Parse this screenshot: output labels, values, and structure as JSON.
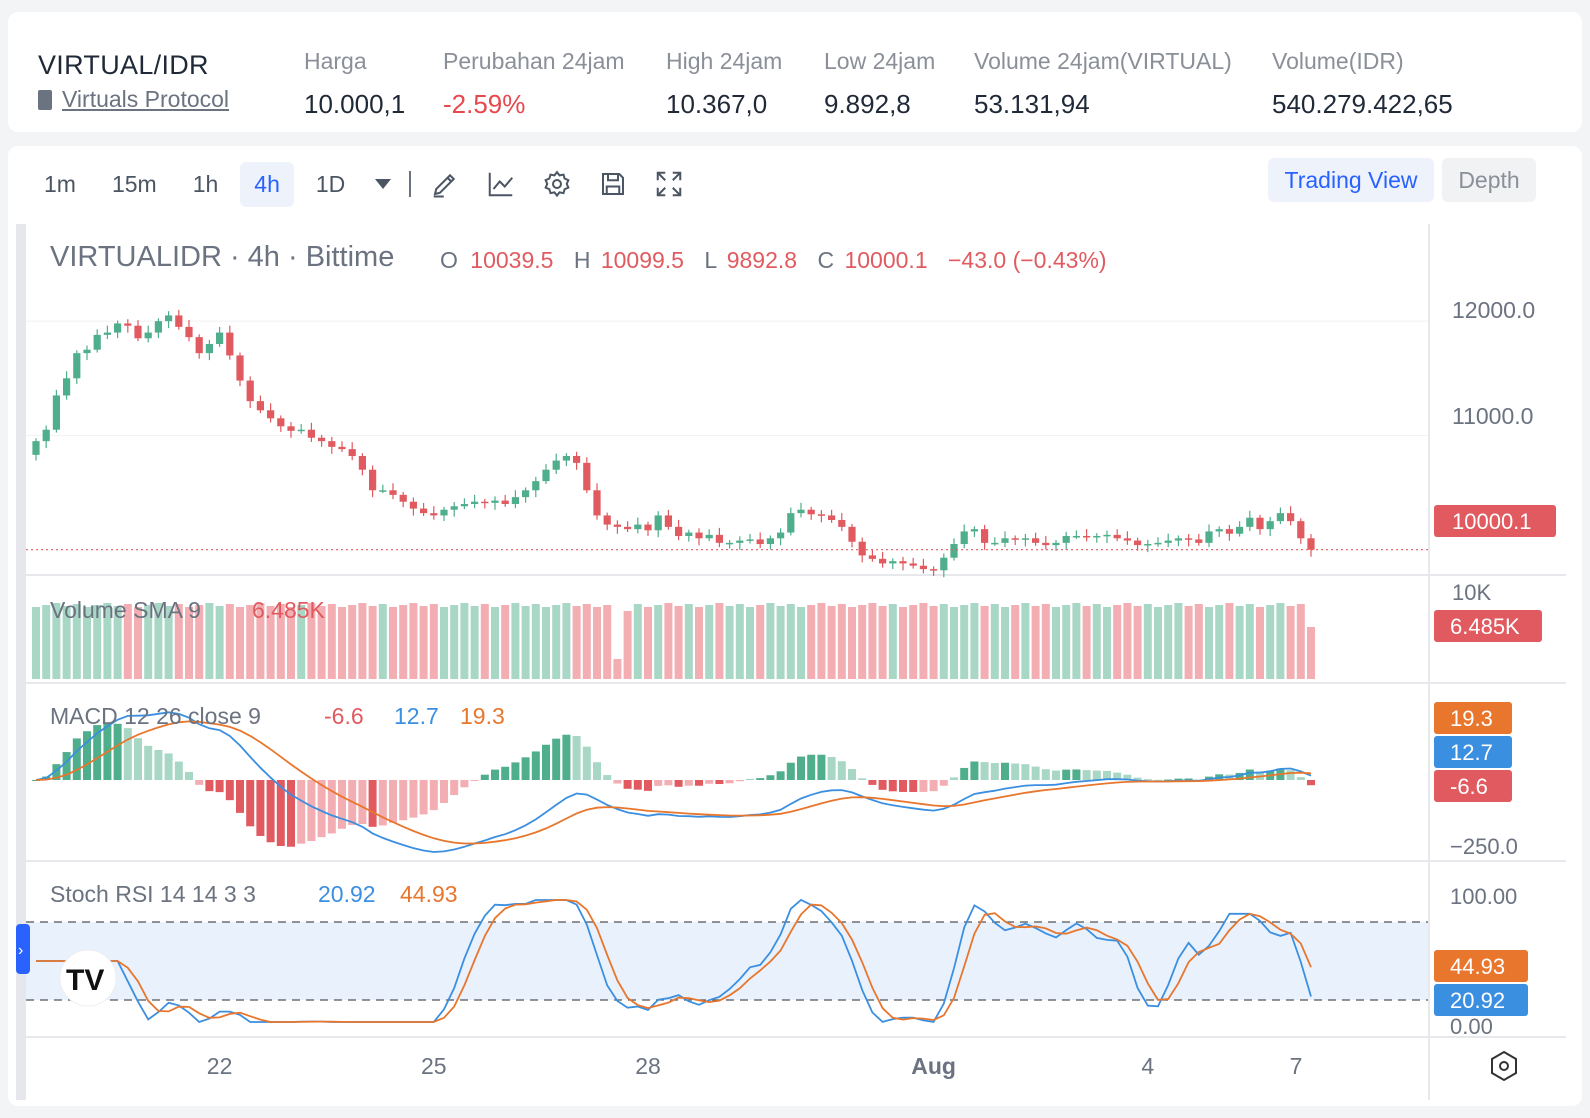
{
  "ticker": {
    "pair": "VIRTUAL/IDR",
    "name": "Virtuals Protocol",
    "stats": [
      {
        "label": "Harga",
        "value": "10.000,1",
        "negative": false
      },
      {
        "label": "Perubahan 24jam",
        "value": "-2.59%",
        "negative": true
      },
      {
        "label": "High 24jam",
        "value": "10.367,0",
        "negative": false
      },
      {
        "label": "Low 24jam",
        "value": "9.892,8",
        "negative": false
      },
      {
        "label": "Volume 24jam(VIRTUAL)",
        "value": "53.131,94",
        "negative": false
      },
      {
        "label": "Volume(IDR)",
        "value": "540.279.422,65",
        "negative": false
      }
    ]
  },
  "toolbar": {
    "timeframes": [
      "1m",
      "15m",
      "1h",
      "4h",
      "1D"
    ],
    "active_timeframe": "4h",
    "tools": [
      "pencil-icon",
      "indicator-chart-icon",
      "gear-icon",
      "save-icon",
      "fullscreen-icon"
    ],
    "trading_view_label": "Trading View",
    "depth_label": "Depth"
  },
  "colors": {
    "up": "#4fae8b",
    "down": "#e05a60",
    "up_light": "#a8d7c6",
    "down_light": "#f2aeb2",
    "macd_line": "#3b8fe0",
    "signal_line": "#e8762d",
    "accent": "#2962ff"
  },
  "chart_data": {
    "type": "candlestick",
    "symbol_line": "VIRTUALIDR · 4h · Bittime",
    "ohlc_labels": {
      "o": "O",
      "h": "H",
      "l": "L",
      "c": "C"
    },
    "ohlc": {
      "o": "10039.5",
      "h": "10099.5",
      "l": "9892.8",
      "c": "10000.1",
      "change": "−43.0 (−0.43%)"
    },
    "last_price_label": "10000.1",
    "price_axis": {
      "ticks": [
        "12000.0",
        "11000.0"
      ],
      "min": 9700,
      "max": 12500
    },
    "date_axis": [
      "22",
      "25",
      "28",
      "Aug",
      "4",
      "7"
    ],
    "close_series": [
      10950,
      11050,
      11350,
      11500,
      11720,
      11750,
      11880,
      11900,
      11980,
      11960,
      11850,
      11900,
      12000,
      12050,
      11950,
      11860,
      11720,
      11800,
      11900,
      11700,
      11480,
      11300,
      11220,
      11150,
      11080,
      11040,
      11050,
      10980,
      10950,
      10900,
      10880,
      10820,
      10700,
      10520,
      10520,
      10480,
      10420,
      10360,
      10320,
      10300,
      10350,
      10380,
      10400,
      10420,
      10410,
      10430,
      10400,
      10460,
      10520,
      10600,
      10700,
      10780,
      10820,
      10760,
      10520,
      10300,
      10220,
      10200,
      10180,
      10220,
      10170,
      10300,
      10200,
      10120,
      10150,
      10100,
      10130,
      10060,
      10060,
      10080,
      10090,
      10050,
      10100,
      10150,
      10320,
      10350,
      10310,
      10300,
      10260,
      10200,
      10070,
      9950,
      9920,
      9880,
      9900,
      9880,
      9860,
      9830,
      9820,
      9930,
      10050,
      10160,
      10180,
      10060,
      10060,
      10100,
      10090,
      10100,
      10060,
      10040,
      10060,
      10120,
      10120,
      10110,
      10120,
      10130,
      10100,
      10080,
      10040,
      10050,
      10060,
      10080,
      10100,
      10090,
      10060,
      10160,
      10180,
      10140,
      10200,
      10280,
      10180,
      10250,
      10320,
      10250,
      10100,
      10000
    ],
    "volume": {
      "label": "Volume SMA 9",
      "value": "6.485K",
      "axis_tick": "10K"
    },
    "macd": {
      "label": "MACD 12 26 close 9",
      "histogram": "-6.6",
      "macd": "12.7",
      "signal": "19.3",
      "axis_tick": "−250.0"
    },
    "stoch_rsi": {
      "label": "Stoch RSI 14 14 3 3",
      "k": "20.92",
      "d": "44.93",
      "axis_ticks": [
        "100.00",
        "0.00"
      ],
      "upper_band": 80,
      "lower_band": 20
    }
  }
}
